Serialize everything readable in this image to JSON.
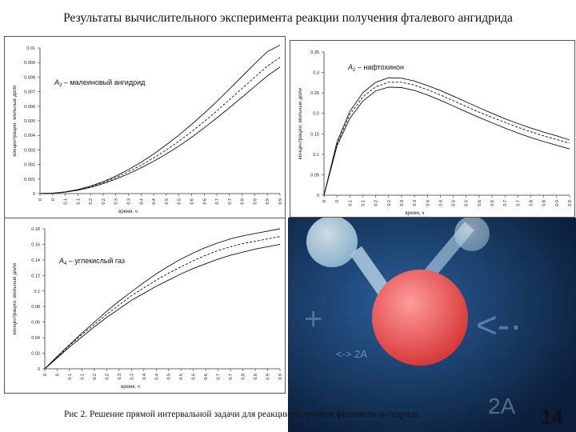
{
  "slide": {
    "title": "Результаты вычислительного эксперимента реакции получения фталевого ангидрида",
    "caption": "Рис 2. Решение прямой интервальной задачи для реакции получения фталевого ангидрида.",
    "page_number": "14"
  },
  "chart_data": [
    {
      "type": "line",
      "ylabel": "концентрации, мольные доли",
      "xlabel": "время, ч",
      "legend_symbol": "A3",
      "legend_text": "– малеиновый ангидрид",
      "x": [
        0,
        0.05,
        0.1,
        0.15,
        0.2,
        0.25,
        0.3,
        0.35,
        0.4,
        0.45,
        0.5,
        0.55,
        0.6,
        0.65,
        0.7,
        0.75,
        0.8,
        0.85,
        0.9,
        0.95
      ],
      "xticks": [
        "0",
        "0",
        "0.1",
        "0.1",
        "0.2",
        "0.2",
        "0.3",
        "0.3",
        "0.4",
        "0.4",
        "0.5",
        "0.5",
        "0.6",
        "0.6",
        "0.7",
        "0.7",
        "0.8",
        "0.8",
        "0.9",
        "0.9"
      ],
      "yticks": [
        "0",
        "0.001",
        "0.002",
        "0.003",
        "0.004",
        "0.005",
        "0.006",
        "0.007",
        "0.008",
        "0.009",
        "0.01"
      ],
      "ylim": [
        0,
        0.01
      ],
      "series": [
        {
          "style": "solid",
          "values": [
            0,
            3e-05,
            0.00012,
            0.00028,
            0.00052,
            0.00082,
            0.0012,
            0.00165,
            0.00215,
            0.00272,
            0.00335,
            0.00402,
            0.00475,
            0.00552,
            0.00633,
            0.00718,
            0.00805,
            0.00892,
            0.00975,
            0.0102
          ]
        },
        {
          "style": "dashed",
          "values": [
            0,
            3e-05,
            0.00011,
            0.00025,
            0.00047,
            0.00075,
            0.0011,
            0.0015,
            0.00195,
            0.00245,
            0.003,
            0.0036,
            0.00425,
            0.00495,
            0.00568,
            0.00645,
            0.00722,
            0.008,
            0.00875,
            0.00935
          ]
        },
        {
          "style": "solid",
          "values": [
            0,
            2e-05,
            0.0001,
            0.00023,
            0.00043,
            0.00068,
            0.001,
            0.00135,
            0.00177,
            0.00222,
            0.00272,
            0.00327,
            0.00387,
            0.00452,
            0.0052,
            0.0059,
            0.00662,
            0.00735,
            0.00808,
            0.0087
          ]
        }
      ]
    },
    {
      "type": "line",
      "ylabel": "концентрации, мольные доли",
      "xlabel": "время, ч",
      "legend_symbol": "A2",
      "legend_text": "– нафтохинон",
      "x": [
        0,
        0.05,
        0.1,
        0.15,
        0.2,
        0.25,
        0.3,
        0.35,
        0.4,
        0.45,
        0.5,
        0.55,
        0.6,
        0.65,
        0.7,
        0.75,
        0.8,
        0.85,
        0.9,
        0.95
      ],
      "xticks": [
        "0",
        "0",
        "0.1",
        "0.1",
        "0.2",
        "0.2",
        "0.3",
        "0.3",
        "0.4",
        "0.4",
        "0.5",
        "0.5",
        "0.6",
        "0.6",
        "0.7",
        "0.7",
        "0.8",
        "0.8",
        "0.9",
        "0.9"
      ],
      "yticks": [
        "0",
        "0.05",
        "0.1",
        "0.15",
        "0.2",
        "0.25",
        "0.3",
        "0.35"
      ],
      "ylim": [
        0,
        0.35
      ],
      "series": [
        {
          "style": "solid",
          "values": [
            0,
            0.13,
            0.205,
            0.25,
            0.276,
            0.287,
            0.286,
            0.279,
            0.268,
            0.256,
            0.242,
            0.228,
            0.214,
            0.2,
            0.187,
            0.175,
            0.164,
            0.154,
            0.145,
            0.135
          ]
        },
        {
          "style": "dashed",
          "values": [
            0,
            0.125,
            0.197,
            0.24,
            0.265,
            0.276,
            0.276,
            0.269,
            0.258,
            0.245,
            0.231,
            0.217,
            0.203,
            0.19,
            0.178,
            0.166,
            0.155,
            0.145,
            0.136,
            0.127
          ]
        },
        {
          "style": "solid",
          "values": [
            0,
            0.12,
            0.188,
            0.23,
            0.255,
            0.264,
            0.263,
            0.256,
            0.245,
            0.232,
            0.218,
            0.204,
            0.19,
            0.177,
            0.164,
            0.152,
            0.141,
            0.131,
            0.122,
            0.113
          ]
        }
      ]
    },
    {
      "type": "line",
      "ylabel": "концентрации, мольные доли",
      "xlabel": "время, ч",
      "legend_symbol": "A4",
      "legend_text": "– углекислый газ",
      "x": [
        0,
        0.05,
        0.1,
        0.15,
        0.2,
        0.25,
        0.3,
        0.35,
        0.4,
        0.45,
        0.5,
        0.55,
        0.6,
        0.65,
        0.7,
        0.75,
        0.8,
        0.85,
        0.9,
        0.95
      ],
      "xticks": [
        "0",
        "0",
        "0.1",
        "0.1",
        "0.2",
        "0.2",
        "0.3",
        "0.3",
        "0.4",
        "0.4",
        "0.5",
        "0.5",
        "0.6",
        "0.6",
        "0.7",
        "0.7",
        "0.8",
        "0.8",
        "0.9",
        "0.9"
      ],
      "yticks": [
        "0",
        "0.02",
        "0.04",
        "0.06",
        "0.08",
        "0.1",
        "0.12",
        "0.14",
        "0.16",
        "0.18"
      ],
      "ylim": [
        0,
        0.18
      ],
      "series": [
        {
          "style": "solid",
          "values": [
            0,
            0.016,
            0.031,
            0.046,
            0.06,
            0.074,
            0.087,
            0.099,
            0.111,
            0.122,
            0.132,
            0.141,
            0.149,
            0.156,
            0.162,
            0.167,
            0.171,
            0.174,
            0.177,
            0.18
          ]
        },
        {
          "style": "dashed",
          "values": [
            0,
            0.015,
            0.03,
            0.044,
            0.057,
            0.07,
            0.082,
            0.094,
            0.104,
            0.114,
            0.123,
            0.131,
            0.139,
            0.146,
            0.152,
            0.157,
            0.161,
            0.164,
            0.167,
            0.17
          ]
        },
        {
          "style": "solid",
          "values": [
            0,
            0.014,
            0.028,
            0.041,
            0.054,
            0.066,
            0.077,
            0.088,
            0.097,
            0.106,
            0.114,
            0.122,
            0.129,
            0.135,
            0.141,
            0.146,
            0.15,
            0.154,
            0.157,
            0.16
          ]
        }
      ]
    }
  ]
}
